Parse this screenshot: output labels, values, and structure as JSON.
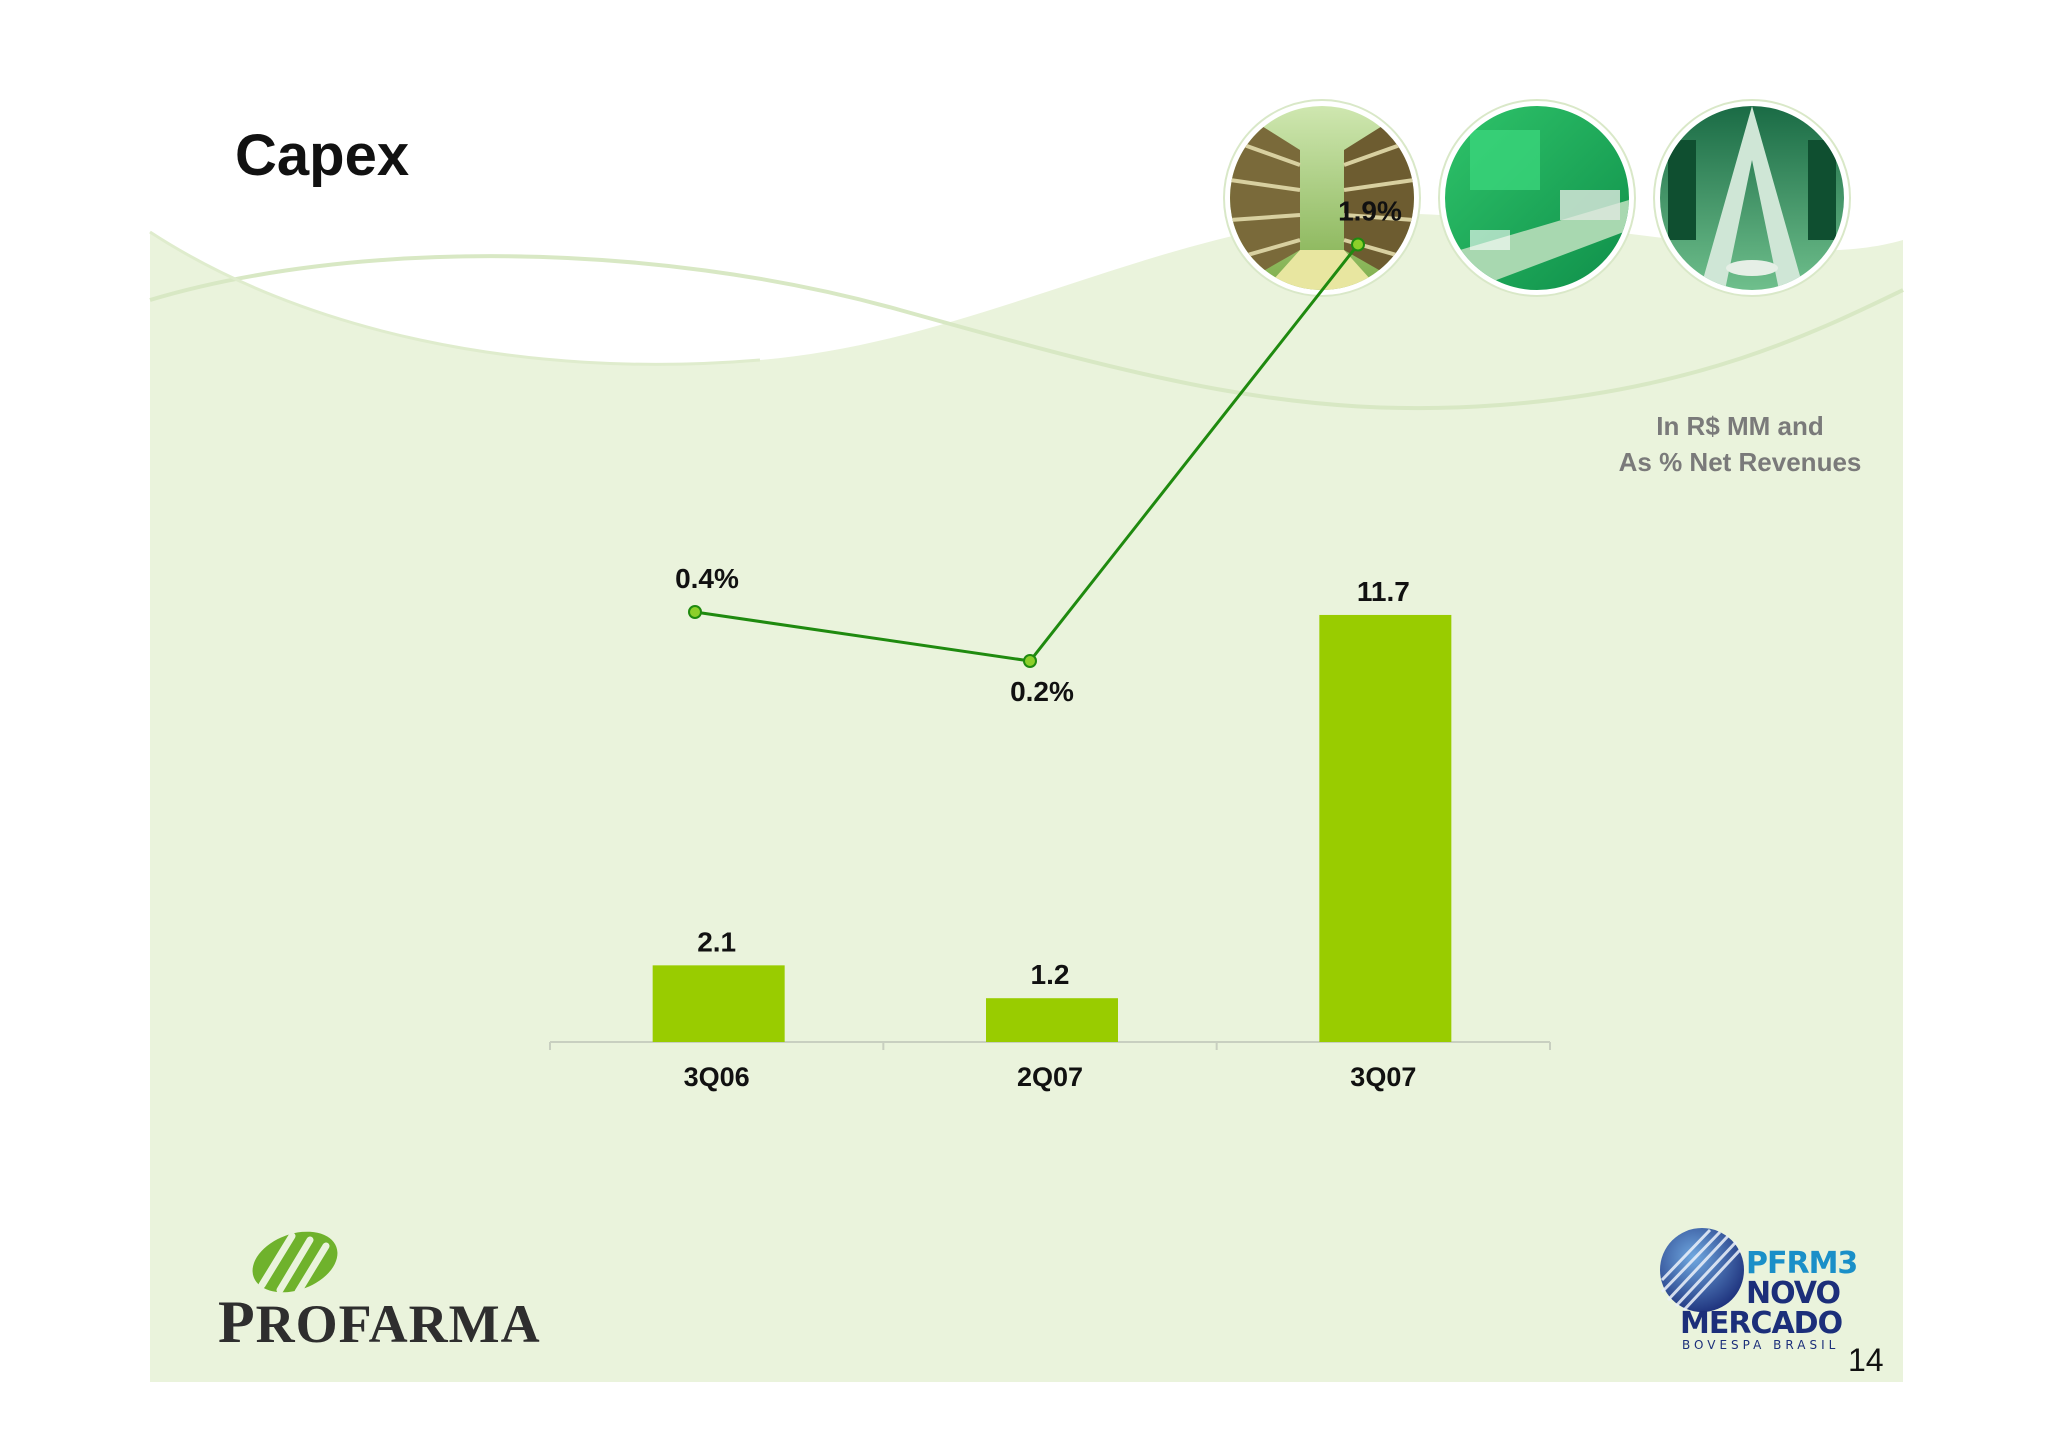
{
  "slide": {
    "title": "Capex",
    "unit_note_line1": "In R$ MM and",
    "unit_note_line2": "As % Net Revenues",
    "page_number": "14"
  },
  "logos": {
    "profarma_icon": "profarma-leaf-icon",
    "profarma_initial": "P",
    "profarma_rest": "ROFARMA",
    "badge_icon": "globe-stripes-icon",
    "badge_line1": "PFRM3",
    "badge_line2": "NOVO",
    "badge_line3": "MERCADO",
    "badge_line4": "BOVESPA   BRASIL"
  },
  "photos": [
    "warehouse-aisle-photo",
    "green-machinery-photo",
    "conveyor-equipment-photo"
  ],
  "chart_data": {
    "type": "bar",
    "title": "",
    "xlabel": "",
    "ylabel": "",
    "categories": [
      "3Q06",
      "2Q07",
      "3Q07"
    ],
    "series": [
      {
        "type": "bar",
        "values": [
          2.1,
          1.2,
          11.7
        ],
        "labels": [
          "2.1",
          "1.2",
          "11.7"
        ],
        "color": "#99cc00"
      },
      {
        "type": "line",
        "values": [
          0.4,
          0.2,
          1.9
        ],
        "labels": [
          "0.4%",
          "0.2%",
          "1.9%"
        ],
        "color": "#1f8a0f",
        "marker_color": "#8ccf2a"
      }
    ],
    "grid": false,
    "legend": "none",
    "colors": {
      "bar": "#99cc00",
      "line": "#1f8a0f",
      "background": "#eaf3dc",
      "axis": "#c8cfc0"
    }
  }
}
